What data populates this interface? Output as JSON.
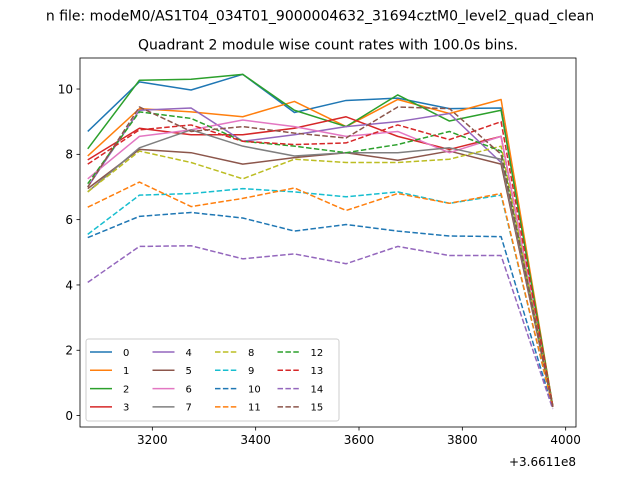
{
  "figure": {
    "suptitle": "n file: modeM0/AS1T04_034T01_9000004632_31694cztM0_level2_quad_clean",
    "offset_text": "+3.6611e8"
  },
  "chart_data": {
    "type": "line",
    "title": "Quadrant 2 module wise count rates with 100.0s bins.",
    "xlabel": "",
    "ylabel": "",
    "x_offset": 366110000,
    "x": [
      3075,
      3175,
      3275,
      3375,
      3475,
      3575,
      3675,
      3775,
      3875,
      3975
    ],
    "xlim": [
      3060,
      4020
    ],
    "ylim": [
      -0.35,
      10.95
    ],
    "xticks": [
      3200,
      3400,
      3600,
      3800,
      4000
    ],
    "yticks": [
      0,
      2,
      4,
      6,
      8,
      10
    ],
    "grid": false,
    "legend": {
      "placement": "lower-left",
      "columns": 4
    },
    "series": [
      {
        "name": "0",
        "color": "#1f77b4",
        "dash": "solid",
        "values": [
          8.7,
          10.22,
          9.97,
          10.45,
          9.28,
          9.65,
          9.72,
          9.4,
          9.42,
          0.3
        ]
      },
      {
        "name": "1",
        "color": "#ff7f0e",
        "dash": "solid",
        "values": [
          7.95,
          9.4,
          9.3,
          9.15,
          9.62,
          8.85,
          9.68,
          9.25,
          9.68,
          0.3
        ]
      },
      {
        "name": "2",
        "color": "#2ca02c",
        "dash": "solid",
        "values": [
          8.17,
          10.27,
          10.3,
          10.45,
          9.35,
          8.85,
          9.82,
          9.02,
          9.35,
          0.3
        ]
      },
      {
        "name": "3",
        "color": "#d62728",
        "dash": "solid",
        "values": [
          7.83,
          8.8,
          8.6,
          8.6,
          8.8,
          9.15,
          8.55,
          8.15,
          8.55,
          0.28
        ]
      },
      {
        "name": "4",
        "color": "#9467bd",
        "dash": "solid",
        "values": [
          7.0,
          9.35,
          9.42,
          8.4,
          8.6,
          8.85,
          9.0,
          9.25,
          7.75,
          0.27
        ]
      },
      {
        "name": "5",
        "color": "#8c564b",
        "dash": "solid",
        "values": [
          6.95,
          8.15,
          8.05,
          7.7,
          7.9,
          8.05,
          7.82,
          8.1,
          7.7,
          0.27
        ]
      },
      {
        "name": "6",
        "color": "#e377c2",
        "dash": "solid",
        "values": [
          7.25,
          8.55,
          8.75,
          9.05,
          8.85,
          8.55,
          8.7,
          8.05,
          8.55,
          0.27
        ]
      },
      {
        "name": "7",
        "color": "#7f7f7f",
        "dash": "solid",
        "values": [
          6.85,
          8.2,
          8.75,
          8.25,
          7.95,
          8.05,
          8.05,
          8.2,
          7.85,
          0.27
        ]
      },
      {
        "name": "8",
        "color": "#bcbd22",
        "dash": "dashed",
        "values": [
          6.85,
          8.1,
          7.75,
          7.25,
          7.85,
          7.75,
          7.75,
          7.85,
          8.25,
          0.27
        ]
      },
      {
        "name": "9",
        "color": "#17becf",
        "dash": "dashed",
        "values": [
          5.55,
          6.75,
          6.8,
          6.95,
          6.85,
          6.7,
          6.85,
          6.5,
          6.75,
          0.25
        ]
      },
      {
        "name": "10",
        "color": "#1f77b4",
        "dash": "dashed",
        "values": [
          5.45,
          6.1,
          6.22,
          6.05,
          5.65,
          5.85,
          5.65,
          5.5,
          5.48,
          0.22
        ]
      },
      {
        "name": "11",
        "color": "#ff7f0e",
        "dash": "dashed",
        "values": [
          6.38,
          7.15,
          6.4,
          6.65,
          6.97,
          6.28,
          6.8,
          6.5,
          6.8,
          0.25
        ]
      },
      {
        "name": "12",
        "color": "#2ca02c",
        "dash": "dashed",
        "values": [
          7.1,
          9.3,
          9.1,
          8.4,
          8.25,
          8.05,
          8.3,
          8.7,
          8.1,
          0.27
        ]
      },
      {
        "name": "13",
        "color": "#d62728",
        "dash": "dashed",
        "values": [
          7.7,
          8.75,
          8.9,
          8.4,
          8.3,
          8.35,
          8.9,
          8.45,
          9.0,
          0.28
        ]
      },
      {
        "name": "14",
        "color": "#9467bd",
        "dash": "dashed",
        "values": [
          4.08,
          5.18,
          5.2,
          4.8,
          4.95,
          4.65,
          5.18,
          4.9,
          4.9,
          0.2
        ]
      },
      {
        "name": "15",
        "color": "#8c564b",
        "dash": "dashed",
        "values": [
          7.0,
          9.45,
          8.7,
          8.85,
          8.65,
          8.5,
          9.45,
          9.4,
          8.0,
          0.26
        ]
      }
    ]
  }
}
